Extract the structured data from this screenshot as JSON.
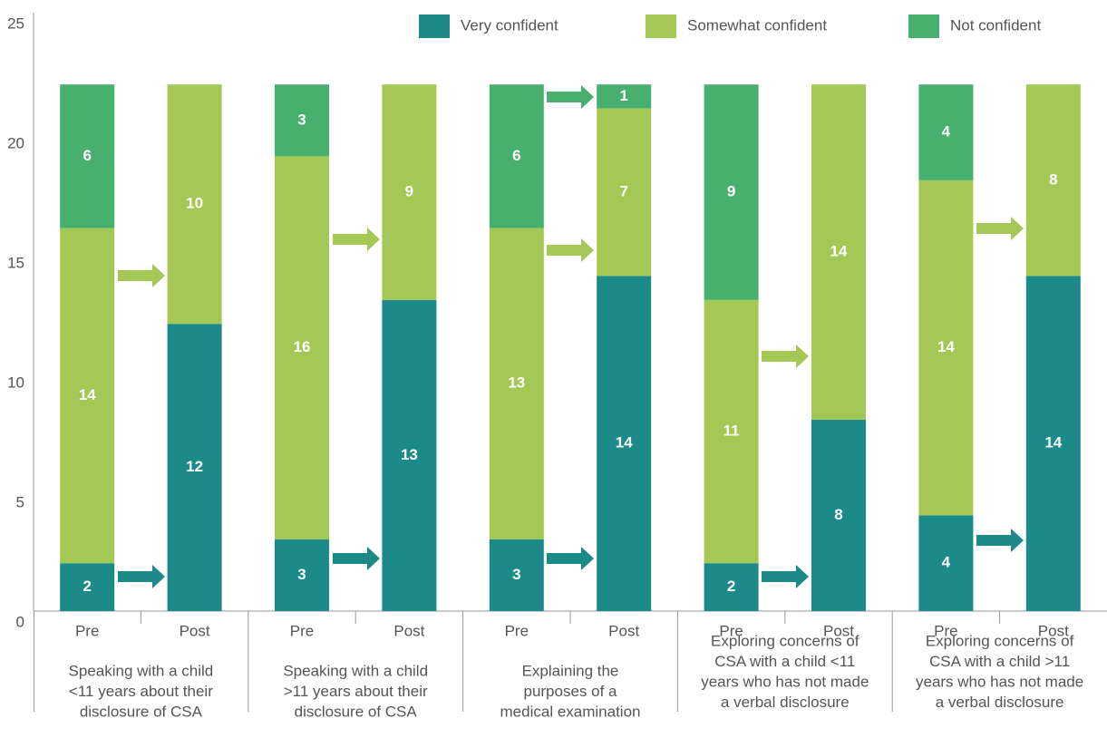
{
  "chart_data": {
    "type": "stacked_bar",
    "groups": [
      [
        "Speaking with a child",
        "<11 years about their",
        "disclosure of CSA"
      ],
      [
        "Speaking with a child",
        ">11 years about their",
        "disclosure of CSA"
      ],
      [
        "Explaining the",
        "purposes of a",
        "medical examination"
      ],
      [
        "Exploring concerns of",
        "CSA with a child <11",
        "years who has not made",
        "a verbal disclosure"
      ],
      [
        "Exploring concerns of",
        "CSA with a child >11",
        "years who has not made",
        "a verbal disclosure"
      ]
    ],
    "categories": [
      "Pre",
      "Post",
      "Pre",
      "Post",
      "Pre",
      "Post",
      "Pre",
      "Post",
      "Pre",
      "Post"
    ],
    "series": [
      {
        "name": "Very confident",
        "color": "#1d8a8a",
        "values": [
          2,
          12,
          3,
          13,
          3,
          14,
          2,
          8,
          4,
          14
        ]
      },
      {
        "name": "Somewhat confident",
        "color": "#a3c855",
        "values": [
          14,
          10,
          16,
          9,
          13,
          7,
          11,
          14,
          14,
          8
        ]
      },
      {
        "name": "Not confident",
        "color": "#47b06e",
        "values": [
          6,
          0,
          3,
          0,
          6,
          1,
          9,
          0,
          4,
          0
        ]
      }
    ],
    "ylim": [
      0,
      25
    ],
    "yticks": [
      0,
      5,
      10,
      15,
      20,
      25
    ],
    "legend": "top-right"
  }
}
